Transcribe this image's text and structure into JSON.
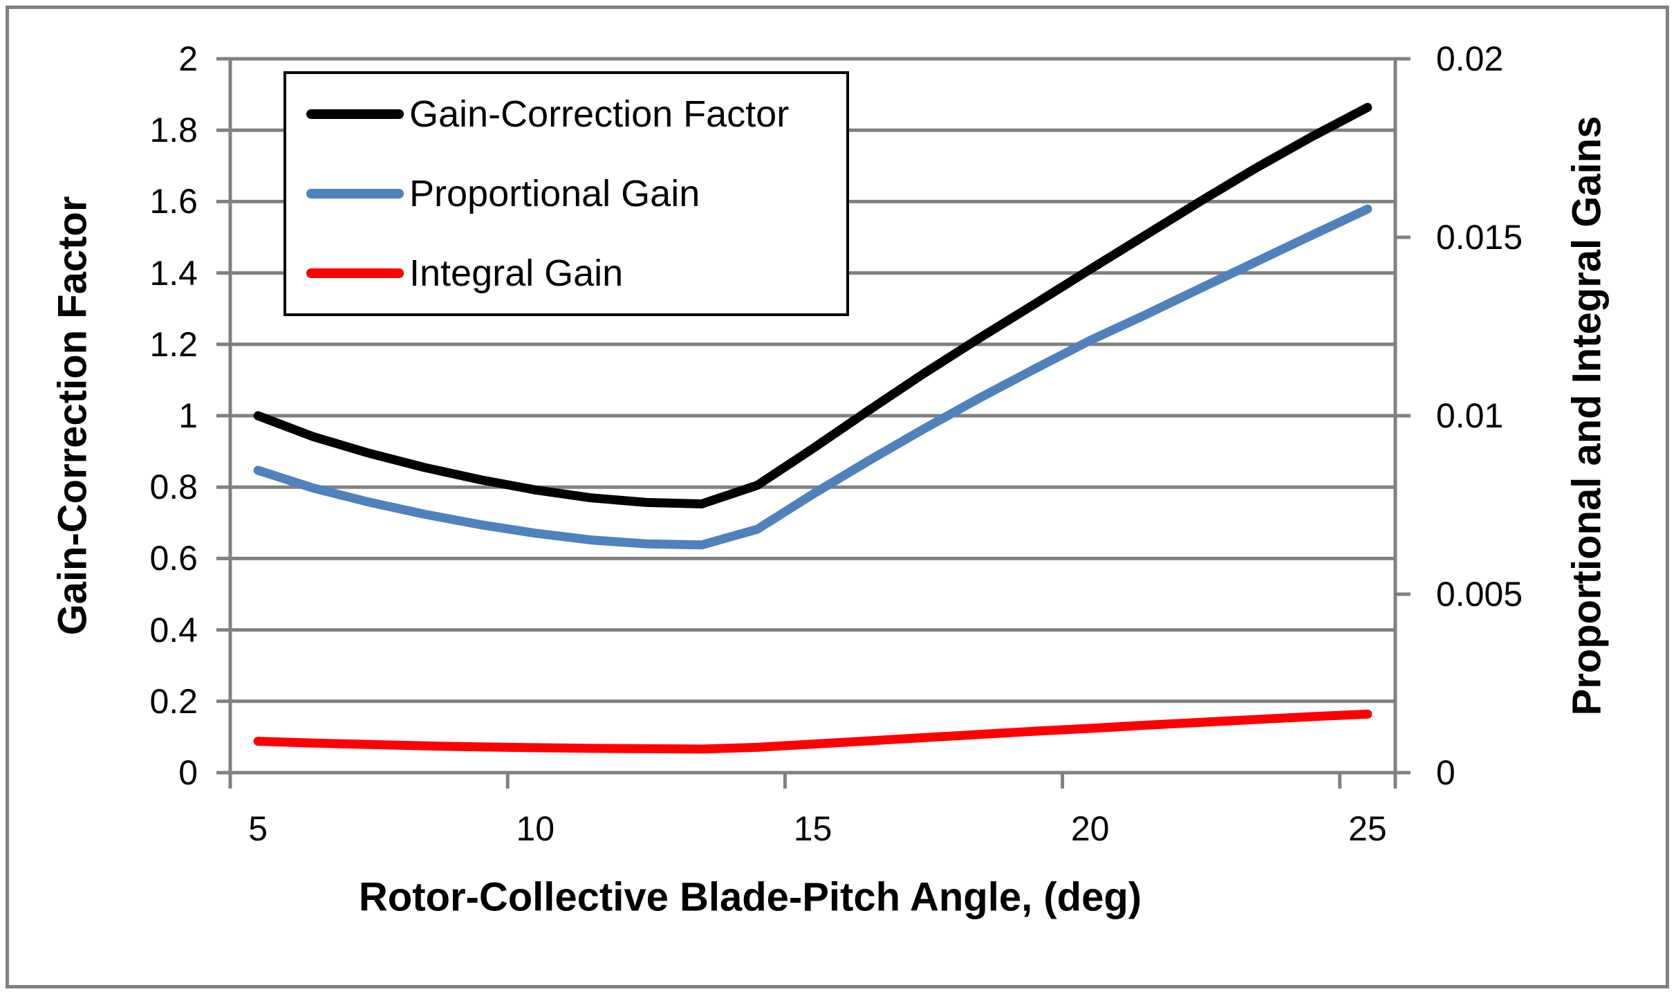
{
  "window": {
    "background": "#FFFFFF",
    "frame_color": "#808080"
  },
  "styles": {
    "grid_color": "#808080",
    "axis_color": "#808080",
    "text_color": "#000000",
    "legend_border_color": "#000000",
    "legend_background": "#FFFFFF"
  },
  "chart_data": {
    "type": "line",
    "title": "",
    "xlabel": "Rotor-Collective Blade-Pitch Angle, (deg)",
    "ylabel_left": "Gain-Correction Factor",
    "ylabel_right": "Proportional and Integral Gains",
    "grid": "horizontal",
    "legend_position": "top-left",
    "x": [
      5,
      6,
      7,
      8,
      9,
      10,
      11,
      12,
      13,
      14,
      15,
      16,
      17,
      18,
      19,
      20,
      21,
      22,
      23,
      24,
      25
    ],
    "x_tick_values": [
      5,
      10,
      15,
      20,
      25
    ],
    "x_tick_labels": [
      "5",
      "10",
      "15",
      "20",
      "25"
    ],
    "left_axis": {
      "min": 0,
      "max": 2,
      "tick_values": [
        2,
        1.8,
        1.6,
        1.4,
        1.2,
        1,
        0.8,
        0.6,
        0.4,
        0.2,
        0
      ],
      "tick_labels": [
        "2",
        "1.8",
        "1.6",
        "1.4",
        "1.2",
        "1",
        "0.8",
        "0.6",
        "0.4",
        "0.2",
        "0"
      ]
    },
    "right_axis": {
      "min": 0,
      "max": 0.02,
      "tick_values": [
        0.02,
        0.015,
        0.01,
        0.005,
        0
      ],
      "tick_labels": [
        "0.02",
        "0.015",
        "0.01",
        "0.005",
        "0"
      ]
    },
    "series": [
      {
        "name": "Gain-Correction Factor",
        "axis": "left",
        "color": "#000000",
        "values": [
          1.0,
          0.941,
          0.895,
          0.855,
          0.821,
          0.792,
          0.77,
          0.757,
          0.753,
          0.805,
          0.908,
          1.014,
          1.118,
          1.217,
          1.313,
          1.41,
          1.506,
          1.602,
          1.695,
          1.782,
          1.864
        ]
      },
      {
        "name": "Proportional Gain",
        "axis": "right",
        "color": "#4F81BD",
        "values": [
          0.00847,
          0.00797,
          0.00758,
          0.00724,
          0.00695,
          0.00671,
          0.00652,
          0.00641,
          0.00638,
          0.00682,
          0.0078,
          0.00873,
          0.00963,
          0.01049,
          0.01131,
          0.01211,
          0.01283,
          0.01358,
          0.01432,
          0.01506,
          0.01579
        ]
      },
      {
        "name": "Integral Gain",
        "axis": "right",
        "color": "#FF0000",
        "values": [
          0.00088,
          0.00083,
          0.00079,
          0.00075,
          0.00072,
          0.0007,
          0.00068,
          0.00067,
          0.00066,
          0.00071,
          0.0008,
          0.00089,
          0.00098,
          0.00107,
          0.00116,
          0.00124,
          0.00133,
          0.00141,
          0.00149,
          0.00157,
          0.00164
        ]
      }
    ]
  }
}
